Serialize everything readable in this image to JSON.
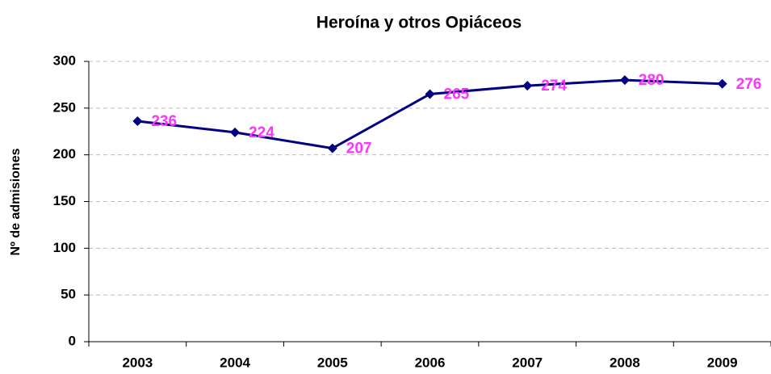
{
  "chart_data": {
    "type": "line",
    "title": "Heroína y otros Opiáceos",
    "y_label": "Nº de admisiones",
    "categories": [
      "2003",
      "2004",
      "2005",
      "2006",
      "2007",
      "2008",
      "2009"
    ],
    "values": [
      236,
      224,
      207,
      265,
      274,
      280,
      276
    ],
    "color": "#000080",
    "label_color": "#ff33ff",
    "ylim": [
      0,
      300
    ],
    "yticks": [
      0,
      50,
      100,
      150,
      200,
      250,
      300
    ],
    "grid": true
  }
}
